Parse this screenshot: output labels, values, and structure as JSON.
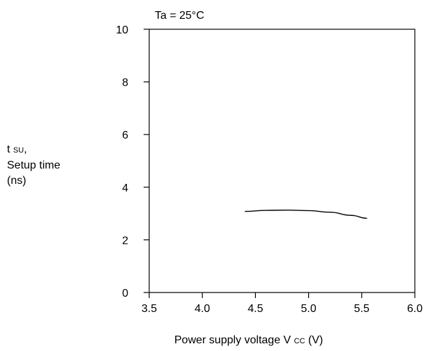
{
  "chart_data": {
    "type": "line",
    "condition": "Ta = 25°C",
    "ylabel": {
      "symbol": "t",
      "subscript": "SU",
      "suffix": ",",
      "name": "Setup time",
      "unit": "(ns)"
    },
    "xlabel": {
      "prefix": "Power supply voltage V",
      "subscript": "CC",
      "suffix": "(V)"
    },
    "xlim": [
      3.5,
      6.0
    ],
    "ylim": [
      0,
      10
    ],
    "xticks": [
      3.5,
      4.0,
      4.5,
      5.0,
      5.5,
      6.0
    ],
    "xtick_labels": [
      "3.5",
      "4.0",
      "4.5",
      "5.0",
      "5.5",
      "6.0"
    ],
    "yticks": [
      0,
      2,
      4,
      6,
      8,
      10
    ],
    "ytick_labels": [
      "0",
      "2",
      "4",
      "6",
      "8",
      "10"
    ],
    "grid": false,
    "series": [
      {
        "x": [
          4.4,
          4.6,
          4.8,
          5.0,
          5.2,
          5.4,
          5.55
        ],
        "y": [
          3.08,
          3.12,
          3.13,
          3.11,
          3.05,
          2.93,
          2.82
        ],
        "color": "#000000"
      }
    ]
  }
}
